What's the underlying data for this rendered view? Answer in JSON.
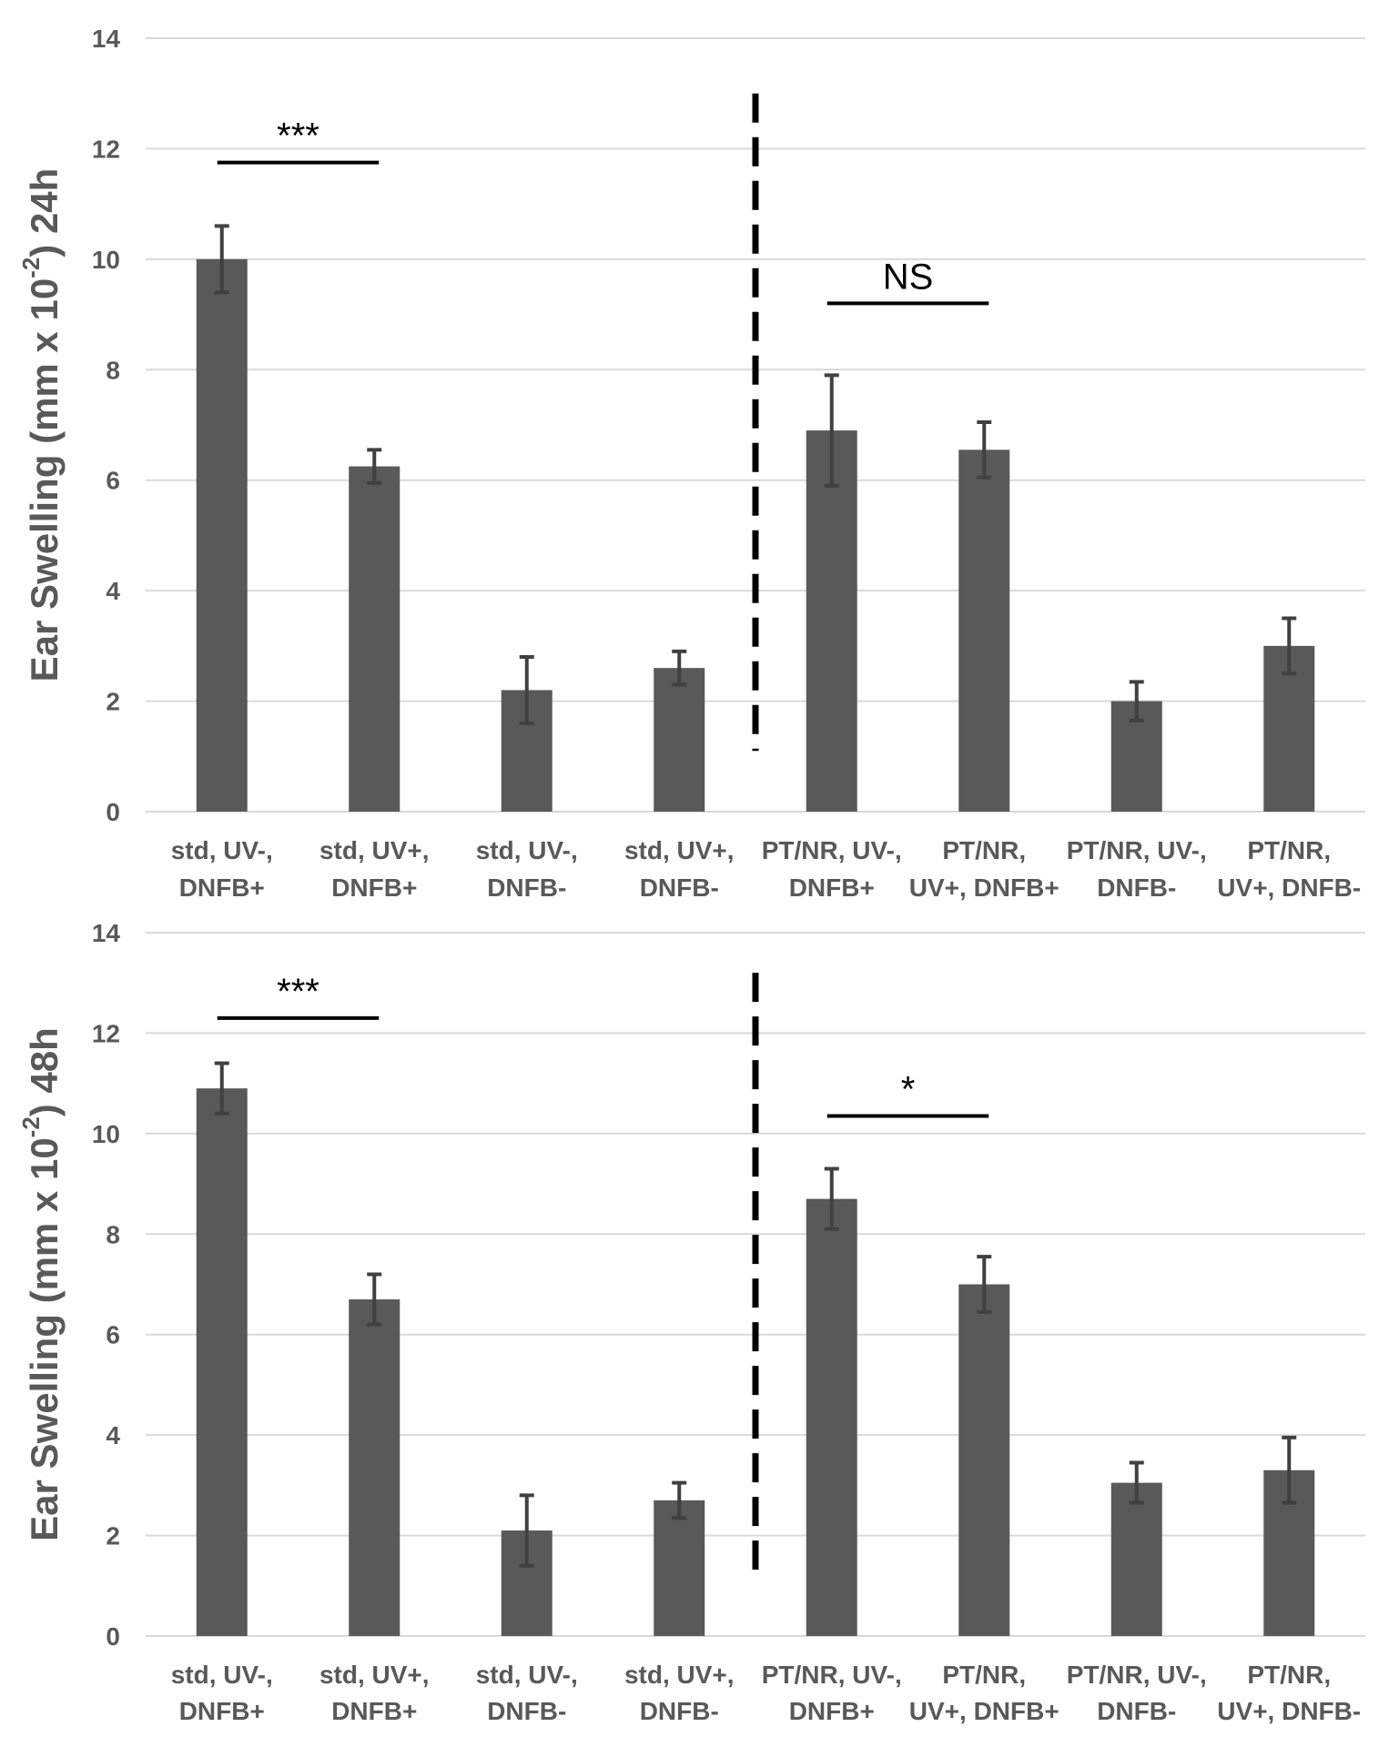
{
  "colors": {
    "bar": "#595959",
    "error_bar": "#404040",
    "grid": "#d9d9d9",
    "text": "#595959",
    "annotation": "#000000"
  },
  "chart_data": [
    {
      "type": "bar",
      "panel": "top",
      "ylabel": "Ear Swelling (mm x 10⁻²) 24h",
      "ylabel_parts": {
        "before": "Ear Swelling (mm x 10",
        "sup": "-2",
        "after": ") 24h"
      },
      "ylim": [
        0,
        14
      ],
      "yticks": [
        0,
        2,
        4,
        6,
        8,
        10,
        12,
        14
      ],
      "grid": true,
      "categories": [
        [
          "std, UV-,",
          "DNFB+"
        ],
        [
          "std, UV+,",
          "DNFB+"
        ],
        [
          "std, UV-,",
          "DNFB-"
        ],
        [
          "std, UV+,",
          "DNFB-"
        ],
        [
          "PT/NR, UV-,",
          "DNFB+"
        ],
        [
          "PT/NR,",
          "UV+, DNFB+"
        ],
        [
          "PT/NR, UV-,",
          "DNFB-"
        ],
        [
          "PT/NR,",
          "UV+, DNFB-"
        ]
      ],
      "values": [
        10.0,
        6.25,
        2.2,
        2.6,
        6.9,
        6.55,
        2.0,
        3.0
      ],
      "errors": [
        0.6,
        0.3,
        0.6,
        0.3,
        1.0,
        0.5,
        0.35,
        0.5
      ],
      "annotations": [
        {
          "text": "***",
          "from_category": 0,
          "to_category": 1,
          "y": 11.75
        },
        {
          "text": "NS",
          "from_category": 4,
          "to_category": 5,
          "y": 9.2
        }
      ],
      "divider": {
        "style": "dashed",
        "between_categories": [
          3,
          4
        ],
        "y_range": [
          1.1,
          13.0
        ]
      }
    },
    {
      "type": "bar",
      "panel": "bottom",
      "ylabel": "Ear Swelling (mm x 10⁻²) 48h",
      "ylabel_parts": {
        "before": "Ear Swelling (mm x 10",
        "sup": "-2",
        "after": ") 48h"
      },
      "ylim": [
        0,
        14
      ],
      "yticks": [
        0,
        2,
        4,
        6,
        8,
        10,
        12,
        14
      ],
      "grid": true,
      "categories": [
        [
          "std, UV-,",
          "DNFB+"
        ],
        [
          "std, UV+,",
          "DNFB+"
        ],
        [
          "std, UV-,",
          "DNFB-"
        ],
        [
          "std, UV+,",
          "DNFB-"
        ],
        [
          "PT/NR, UV-,",
          "DNFB+"
        ],
        [
          "PT/NR,",
          "UV+, DNFB+"
        ],
        [
          "PT/NR, UV-,",
          "DNFB-"
        ],
        [
          "PT/NR,",
          "UV+, DNFB-"
        ]
      ],
      "values": [
        10.9,
        6.7,
        2.1,
        2.7,
        8.7,
        7.0,
        3.05,
        3.3
      ],
      "errors": [
        0.5,
        0.5,
        0.7,
        0.35,
        0.6,
        0.55,
        0.4,
        0.65
      ],
      "annotations": [
        {
          "text": "***",
          "from_category": 0,
          "to_category": 1,
          "y": 12.3
        },
        {
          "text": "*",
          "from_category": 4,
          "to_category": 5,
          "y": 10.35
        }
      ],
      "divider": {
        "style": "dashed",
        "between_categories": [
          3,
          4
        ],
        "y_range": [
          1.1,
          13.2
        ]
      }
    }
  ]
}
